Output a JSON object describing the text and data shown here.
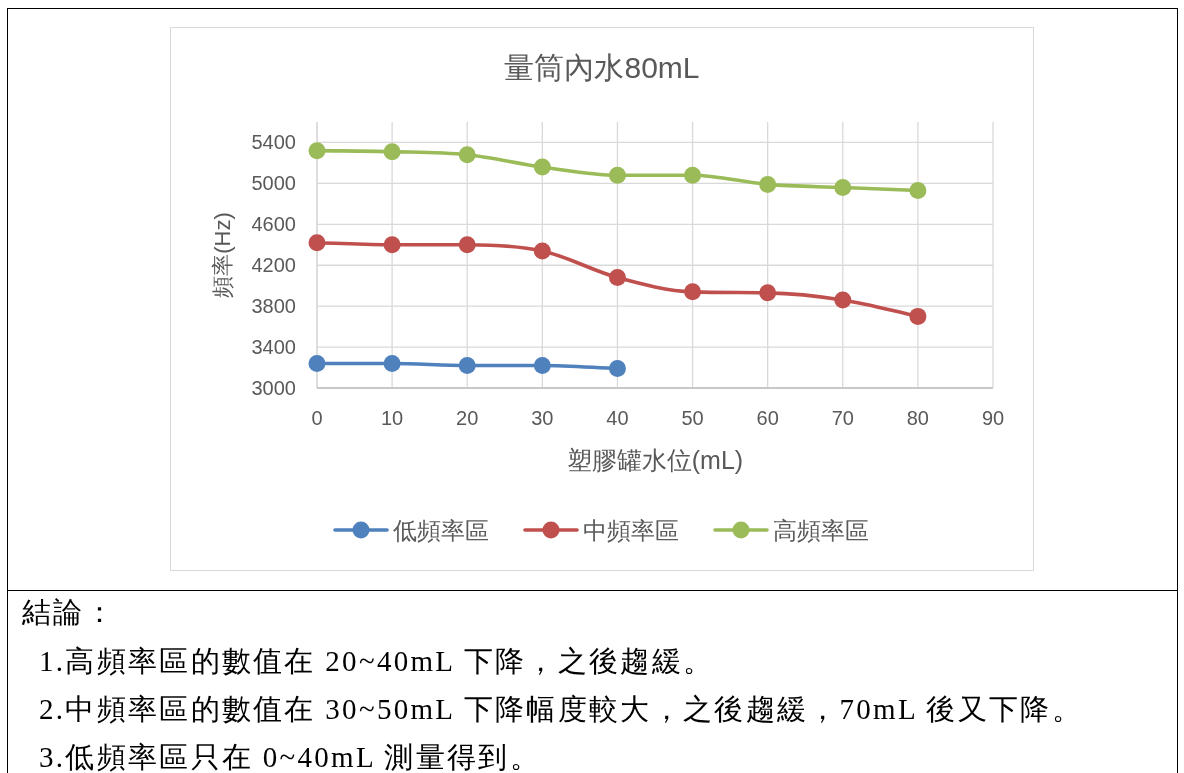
{
  "chart_data": {
    "type": "line",
    "title": "量筒內水80mL",
    "xlabel": "塑膠罐水位(mL)",
    "ylabel": "頻率(Hz)",
    "x": [
      0,
      10,
      20,
      30,
      40,
      50,
      60,
      70,
      80
    ],
    "series": [
      {
        "name": "低頻率區",
        "color": "#4f81bd",
        "x": [
          0,
          10,
          20,
          30,
          40
        ],
        "values": [
          3240,
          3240,
          3220,
          3220,
          3190
        ]
      },
      {
        "name": "中頻率區",
        "color": "#c0504d",
        "values": [
          4420,
          4400,
          4400,
          4340,
          4080,
          3940,
          3930,
          3860,
          3700
        ]
      },
      {
        "name": "高頻率區",
        "color": "#9bbb59",
        "values": [
          5320,
          5310,
          5280,
          5160,
          5080,
          5080,
          4990,
          4960,
          4930
        ]
      }
    ],
    "xlim": [
      0,
      90
    ],
    "xticks": [
      0,
      10,
      20,
      30,
      40,
      50,
      60,
      70,
      80,
      90
    ],
    "ylim": [
      3000,
      5600
    ],
    "yticks": [
      3000,
      3400,
      3800,
      4200,
      4600,
      5000,
      5400
    ],
    "grid": true,
    "legend": "bottom",
    "marker": "circle",
    "line_style": "solid",
    "annotations": [
      "結論：",
      "1.高頻率區的數值在 20~40mL 下降，之後趨緩。",
      "2.中頻率區的數值在 30~50mL 下降幅度較大，之後趨緩，70mL 後又下降。",
      "3.低頻率區只在 0~40mL 測量得到。"
    ]
  }
}
